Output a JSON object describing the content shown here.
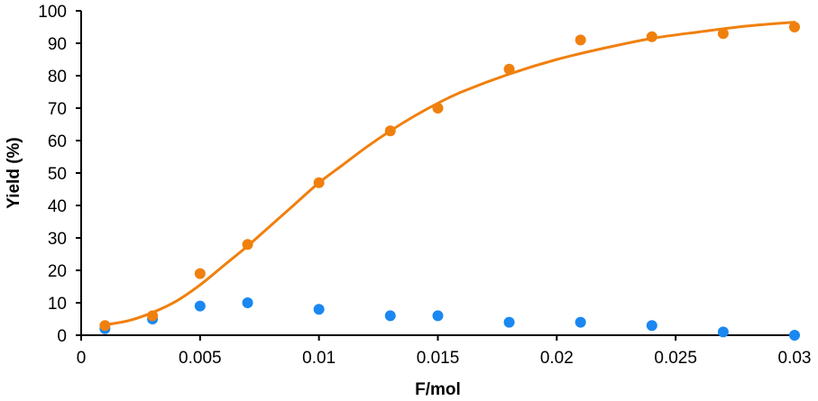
{
  "chart_data": {
    "type": "scatter",
    "title": "",
    "xlabel": "F/mol",
    "ylabel": "Yield (%)",
    "xlim": [
      0,
      0.03
    ],
    "ylim": [
      0,
      100
    ],
    "x_ticks": [
      0,
      0.005,
      0.01,
      0.015,
      0.02,
      0.025,
      0.03
    ],
    "x_tick_labels": [
      "0",
      "0.005",
      "0.01",
      "0.015",
      "0.02",
      "0.025",
      "0.03"
    ],
    "y_ticks": [
      0,
      10,
      20,
      30,
      40,
      50,
      60,
      70,
      80,
      90,
      100
    ],
    "y_tick_labels": [
      "0",
      "10",
      "20",
      "30",
      "40",
      "50",
      "60",
      "70",
      "80",
      "90",
      "100"
    ],
    "grid": false,
    "legend": "none",
    "series": [
      {
        "color": "#F0800E",
        "points": [
          {
            "x": 0.001,
            "y": 3
          },
          {
            "x": 0.003,
            "y": 6
          },
          {
            "x": 0.005,
            "y": 19
          },
          {
            "x": 0.007,
            "y": 28
          },
          {
            "x": 0.01,
            "y": 47
          },
          {
            "x": 0.013,
            "y": 63
          },
          {
            "x": 0.015,
            "y": 70
          },
          {
            "x": 0.018,
            "y": 82
          },
          {
            "x": 0.021,
            "y": 91
          },
          {
            "x": 0.024,
            "y": 92
          },
          {
            "x": 0.027,
            "y": 93
          },
          {
            "x": 0.03,
            "y": 95
          }
        ],
        "fit_curve": [
          {
            "x": 0.001,
            "y": 3.2
          },
          {
            "x": 0.002,
            "y": 4.5
          },
          {
            "x": 0.003,
            "y": 7
          },
          {
            "x": 0.004,
            "y": 10.5
          },
          {
            "x": 0.005,
            "y": 15.5
          },
          {
            "x": 0.006,
            "y": 21.5
          },
          {
            "x": 0.007,
            "y": 27.5
          },
          {
            "x": 0.008,
            "y": 34
          },
          {
            "x": 0.009,
            "y": 40.5
          },
          {
            "x": 0.01,
            "y": 47
          },
          {
            "x": 0.011,
            "y": 52.5
          },
          {
            "x": 0.012,
            "y": 58
          },
          {
            "x": 0.013,
            "y": 63
          },
          {
            "x": 0.014,
            "y": 67.5
          },
          {
            "x": 0.015,
            "y": 71.5
          },
          {
            "x": 0.016,
            "y": 75
          },
          {
            "x": 0.018,
            "y": 80.5
          },
          {
            "x": 0.02,
            "y": 85
          },
          {
            "x": 0.022,
            "y": 88.5
          },
          {
            "x": 0.024,
            "y": 91.5
          },
          {
            "x": 0.026,
            "y": 93.5
          },
          {
            "x": 0.028,
            "y": 95.3
          },
          {
            "x": 0.03,
            "y": 96.5
          }
        ]
      },
      {
        "color": "#1A88F0",
        "points": [
          {
            "x": 0.001,
            "y": 2
          },
          {
            "x": 0.003,
            "y": 5
          },
          {
            "x": 0.005,
            "y": 9
          },
          {
            "x": 0.007,
            "y": 10
          },
          {
            "x": 0.01,
            "y": 8
          },
          {
            "x": 0.013,
            "y": 6
          },
          {
            "x": 0.015,
            "y": 6
          },
          {
            "x": 0.018,
            "y": 4
          },
          {
            "x": 0.021,
            "y": 4
          },
          {
            "x": 0.024,
            "y": 3
          },
          {
            "x": 0.027,
            "y": 1
          },
          {
            "x": 0.03,
            "y": 0
          }
        ]
      }
    ]
  }
}
